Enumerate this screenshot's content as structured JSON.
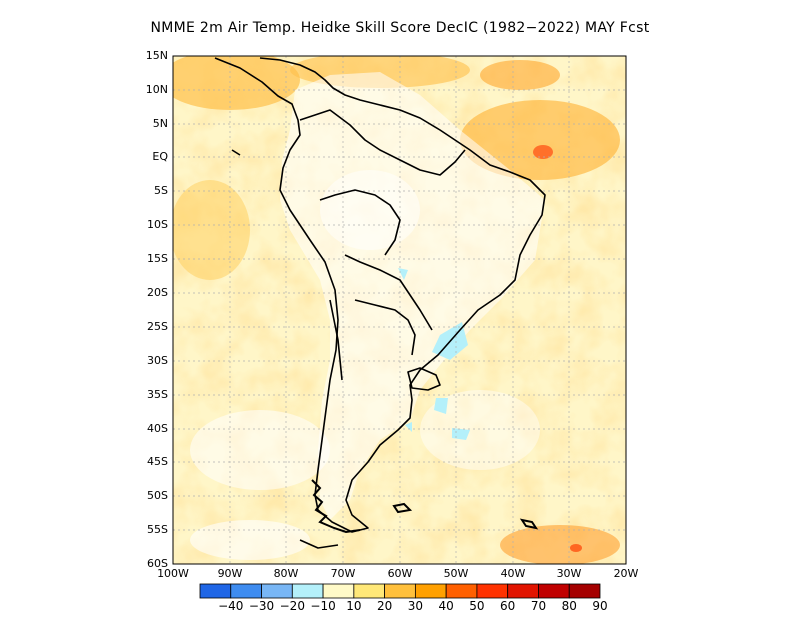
{
  "title": "NMME  2m Air Temp. Heidke Skill Score DecIC (1982−2022) MAY Fcst",
  "map": {
    "lon_range": [
      -100,
      -20
    ],
    "lat_range": [
      -60,
      15
    ],
    "grid": true,
    "lat_labels": [
      "15N",
      "10N",
      "5N",
      "EQ",
      "5S",
      "10S",
      "15S",
      "20S",
      "25S",
      "30S",
      "35S",
      "40S",
      "45S",
      "50S",
      "55S",
      "60S"
    ],
    "lon_labels": [
      "100W",
      "90W",
      "80W",
      "70W",
      "60W",
      "50W",
      "40W",
      "30W",
      "20W"
    ]
  },
  "colorbar": {
    "colors": [
      "#1f66e6",
      "#3e8cf0",
      "#78b6f5",
      "#b4f0fa",
      "#fffac8",
      "#ffe878",
      "#ffc03c",
      "#ffa000",
      "#ff6000",
      "#ff3200",
      "#e11400",
      "#c00000",
      "#a50000"
    ],
    "labels": [
      "−40",
      "−30",
      "−20",
      "−10",
      "10",
      "20",
      "30",
      "40",
      "50",
      "60",
      "70",
      "80",
      "90"
    ]
  }
}
